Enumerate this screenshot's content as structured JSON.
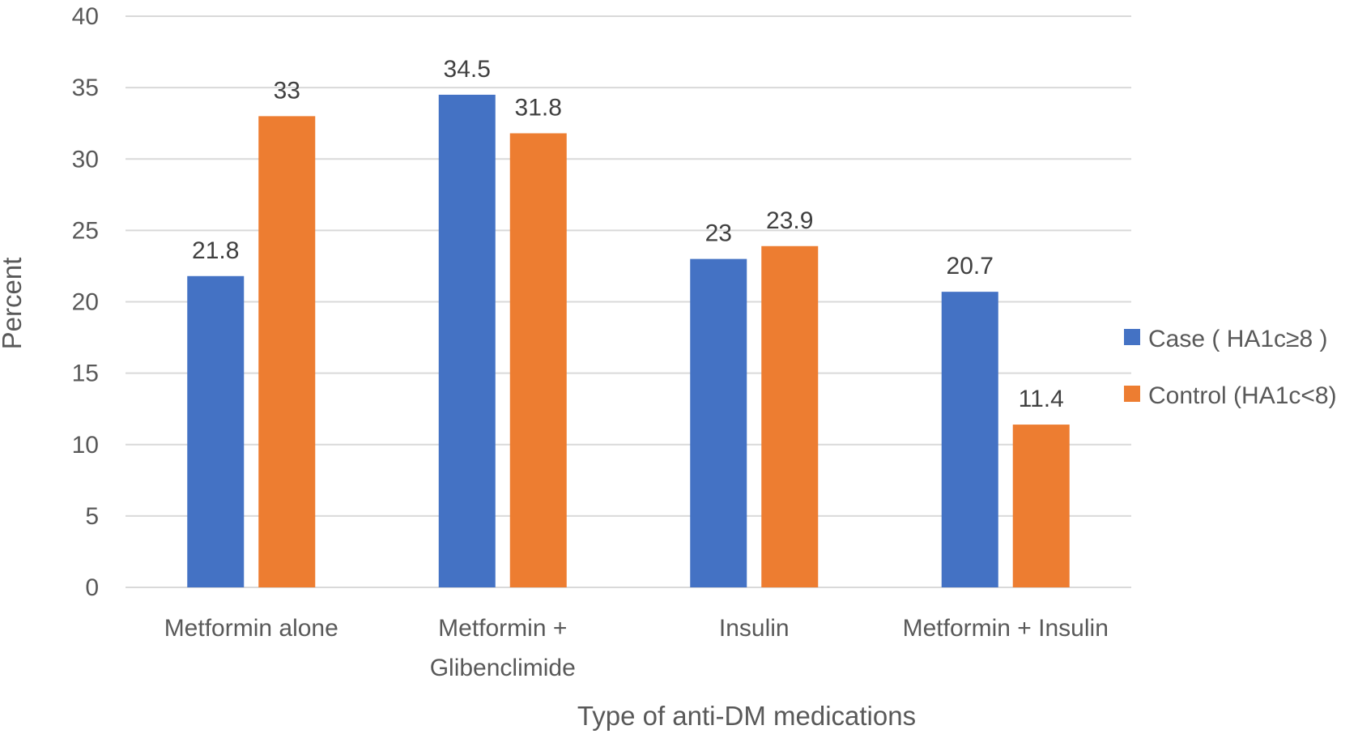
{
  "chart_data": {
    "type": "bar",
    "title": "",
    "xlabel": "Type of anti-DM medications",
    "ylabel": "Percent",
    "ylim": [
      0,
      40
    ],
    "yticks": [
      0,
      5,
      10,
      15,
      20,
      25,
      30,
      35,
      40
    ],
    "grid": true,
    "legend_position": "right",
    "categories": [
      [
        "Metformin alone"
      ],
      [
        "Metformin +",
        "Glibenclimide"
      ],
      [
        "Insulin"
      ],
      [
        "Metformin + Insulin"
      ]
    ],
    "series": [
      {
        "name": "Case ( HA1c≥8 )",
        "color": "#4472c4",
        "values": [
          21.8,
          34.5,
          23,
          20.7
        ],
        "labels": [
          "21.8",
          "34.5",
          "23",
          "20.7"
        ]
      },
      {
        "name": "Control (HA1c<8)",
        "color": "#ed7d31",
        "values": [
          33,
          31.8,
          23.9,
          11.4
        ],
        "labels": [
          "33",
          "31.8",
          "23.9",
          "11.4"
        ]
      }
    ]
  }
}
